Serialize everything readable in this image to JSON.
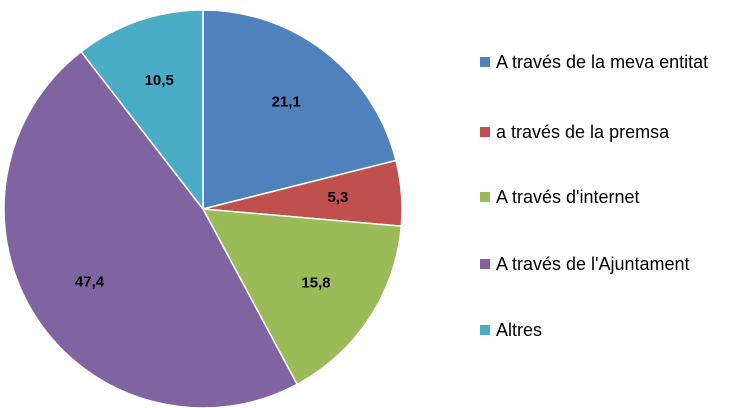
{
  "chart_data": {
    "type": "pie",
    "categories": [
      "A través de la meva entitat",
      "a través de la premsa",
      "A través d'internet",
      "A través de l'Ajuntament",
      "Altres"
    ],
    "values": [
      21.1,
      5.3,
      15.8,
      47.4,
      10.5
    ],
    "value_labels": [
      "21,1",
      "5,3",
      "15,8",
      "47,4",
      "10,5"
    ],
    "colors": [
      "#4f81bd",
      "#c0504d",
      "#9bbb59",
      "#8064a2",
      "#4bacc6"
    ],
    "legend": "right"
  }
}
